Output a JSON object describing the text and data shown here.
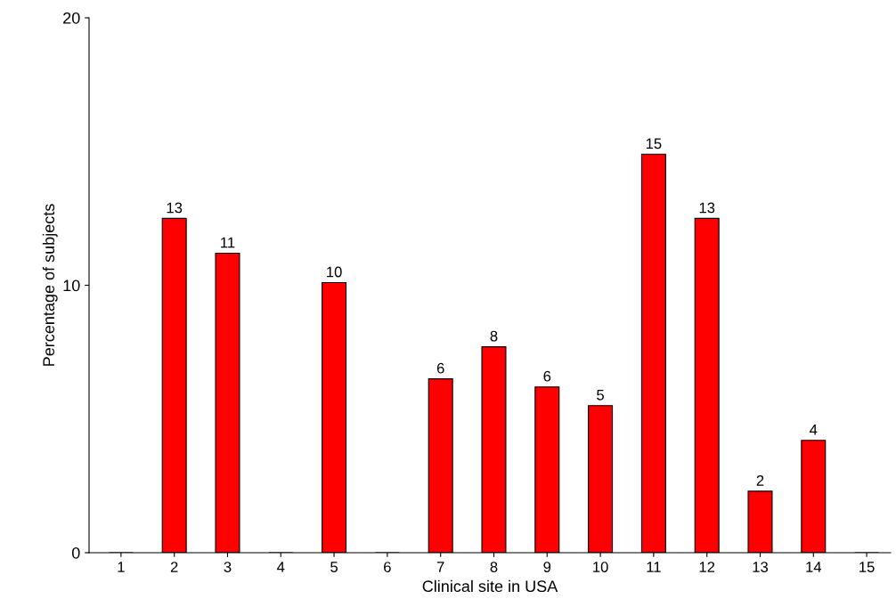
{
  "chart_data": {
    "type": "bar",
    "xlabel": "Clinical site in USA",
    "ylabel": "Percentage of subjects",
    "categories": [
      "1",
      "2",
      "3",
      "4",
      "5",
      "6",
      "7",
      "8",
      "9",
      "10",
      "11",
      "12",
      "13",
      "14",
      "15"
    ],
    "values": [
      0,
      12.5,
      11.2,
      0,
      10.1,
      0,
      6.5,
      7.7,
      6.2,
      5.5,
      14.9,
      12.5,
      2.3,
      4.2,
      0
    ],
    "value_labels": [
      null,
      "13",
      "11",
      null,
      "10",
      null,
      "6",
      "8",
      "6",
      "5",
      "15",
      "13",
      "2",
      "4",
      null
    ],
    "color": "#ff0000",
    "ylim": [
      0,
      20
    ],
    "yticks": [
      0,
      10,
      20
    ],
    "grid": false,
    "legend": false
  }
}
